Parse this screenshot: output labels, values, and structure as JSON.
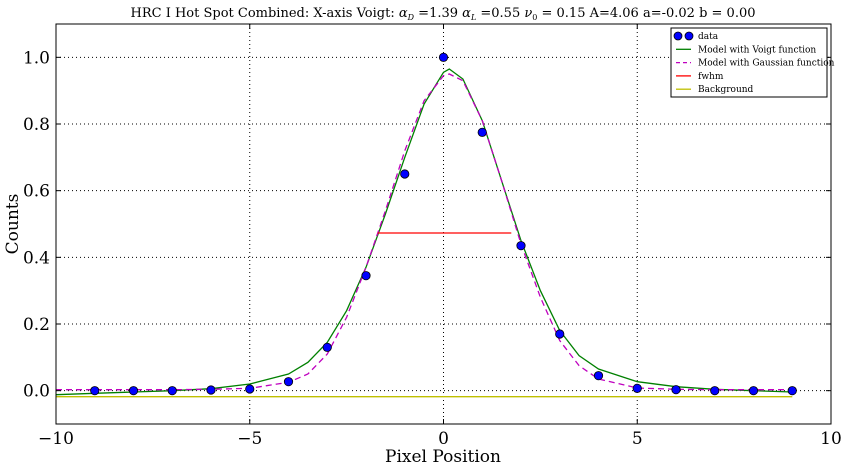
{
  "chart_data": {
    "type": "scatter",
    "title": "HRC I Hot Spot Combined: X-axis  Voigt: αD =1.39 αL =0.55 ν0 = 0.15 A=4.06  a=-0.02 b = 0.00",
    "title_parts": {
      "prefix": "HRC I Hot Spot Combined: X-axis  Voigt: ",
      "alpha_d": "α",
      "alpha_d_sub": "D",
      "alpha_d_value": " =1.39 ",
      "alpha_l": "α",
      "alpha_l_sub": "L",
      "alpha_l_value": " =0.55 ",
      "nu": "ν",
      "nu_sub": "0",
      "suffix": " = 0.15 A=4.06  a=-0.02 b = 0.00"
    },
    "xlabel": "Pixel Position",
    "ylabel": "Counts",
    "xlim": [
      -10,
      10
    ],
    "ylim": [
      -0.1,
      1.1
    ],
    "xticks": [
      -10,
      -5,
      0,
      5,
      10
    ],
    "xtick_labels": [
      "−10",
      "−5",
      "0",
      "5",
      "10"
    ],
    "yticks": [
      0.0,
      0.2,
      0.4,
      0.6,
      0.8,
      1.0
    ],
    "ytick_labels": [
      "0.0",
      "0.2",
      "0.4",
      "0.6",
      "0.8",
      "1.0"
    ],
    "grid": true,
    "legend_position": "top-right",
    "series": [
      {
        "name": "data",
        "kind": "scatter",
        "color": "#0000ff",
        "x": [
          -9,
          -8,
          -7,
          -6,
          -5,
          -4,
          -3,
          -2,
          -1,
          0,
          1,
          2,
          3,
          4,
          5,
          6,
          7,
          8,
          9
        ],
        "y": [
          0.0,
          0.0,
          0.0,
          0.002,
          0.005,
          0.027,
          0.13,
          0.345,
          0.65,
          1.0,
          0.775,
          0.435,
          0.17,
          0.045,
          0.007,
          0.003,
          0.0,
          0.0,
          0.0
        ]
      },
      {
        "name": "Model with Voigt function",
        "kind": "line",
        "color": "#008000",
        "x": [
          -10,
          -9,
          -8,
          -7,
          -6,
          -5,
          -4,
          -3.5,
          -3,
          -2.5,
          -2,
          -1.5,
          -1,
          -0.5,
          0,
          0.15,
          0.5,
          1,
          1.5,
          2,
          2.5,
          3,
          3.5,
          4,
          5,
          6,
          7,
          8,
          9
        ],
        "y": [
          -0.012,
          -0.008,
          -0.004,
          0.0,
          0.006,
          0.02,
          0.05,
          0.085,
          0.145,
          0.24,
          0.37,
          0.53,
          0.7,
          0.86,
          0.955,
          0.965,
          0.935,
          0.81,
          0.63,
          0.45,
          0.3,
          0.18,
          0.105,
          0.065,
          0.027,
          0.012,
          0.004,
          0.0,
          -0.004
        ]
      },
      {
        "name": "Model with Gaussian function",
        "kind": "line",
        "dashed": true,
        "color": "#bf00bf",
        "x": [
          -10,
          -9,
          -8,
          -7,
          -6,
          -5,
          -4,
          -3.5,
          -3,
          -2.5,
          -2,
          -1.5,
          -1,
          -0.5,
          0,
          0.15,
          0.5,
          1,
          1.5,
          2,
          2.5,
          3,
          3.5,
          4,
          5,
          6,
          7,
          8,
          9
        ],
        "y": [
          0.003,
          0.003,
          0.003,
          0.003,
          0.004,
          0.007,
          0.025,
          0.05,
          0.11,
          0.22,
          0.37,
          0.54,
          0.72,
          0.87,
          0.945,
          0.95,
          0.93,
          0.81,
          0.63,
          0.44,
          0.28,
          0.15,
          0.075,
          0.035,
          0.008,
          0.004,
          0.003,
          0.003,
          0.003
        ]
      },
      {
        "name": "fwhm",
        "kind": "line",
        "color": "#ff0000",
        "x": [
          -1.7,
          1.75
        ],
        "y": [
          0.473,
          0.473
        ]
      },
      {
        "name": "Background",
        "kind": "line",
        "color": "#bfbf00",
        "x": [
          -10,
          9
        ],
        "y": [
          -0.018,
          -0.018
        ]
      }
    ]
  }
}
